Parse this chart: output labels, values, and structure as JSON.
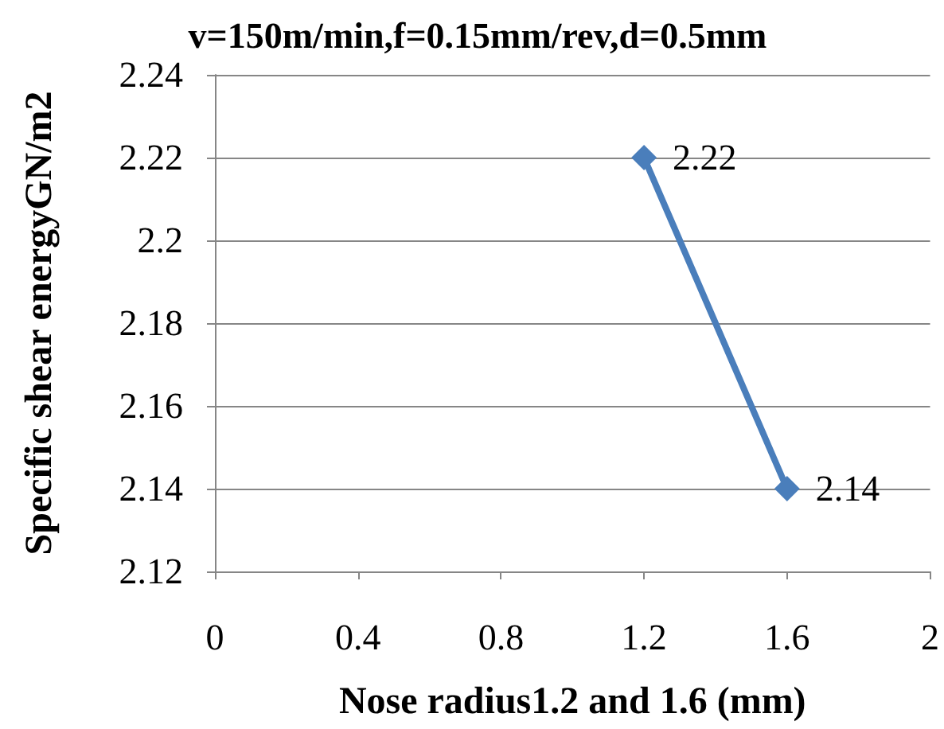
{
  "chart_data": {
    "type": "line",
    "title": "v=150m/min,f=0.15mm/rev,d=0.5mm",
    "xlabel": "Nose radius1.2 and 1.6 (mm)",
    "ylabel": "Specific shear energyGN/m2",
    "x": [
      1.2,
      1.6
    ],
    "series": [
      {
        "color": "#4a7ebb",
        "values": [
          2.22,
          2.14
        ]
      }
    ],
    "xlim": [
      0,
      2
    ],
    "xticks": [
      0,
      0.4,
      0.8,
      1.2,
      1.6,
      2
    ],
    "ylim": [
      2.12,
      2.24
    ],
    "yticks": [
      2.12,
      2.14,
      2.16,
      2.18,
      2.2,
      2.22,
      2.24
    ],
    "grid": "y",
    "marker": "diamond",
    "line_style": "solid",
    "data_labels": true
  }
}
